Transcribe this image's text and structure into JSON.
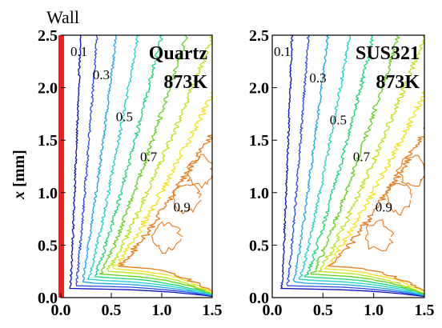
{
  "wall_label": "Wall",
  "y_axis_label": "x [mm]",
  "contour_levels": [
    0.1,
    0.2,
    0.3,
    0.4,
    0.5,
    0.6,
    0.7,
    0.8,
    0.9
  ],
  "contour_colors": [
    "#0a12b8",
    "#2848ee",
    "#1aa6e6",
    "#1ed2cc",
    "#17d67a",
    "#5fd21c",
    "#b8e418",
    "#f2e11c",
    "#ea7a1a"
  ],
  "wall_color": "#ff1a1a",
  "chart_data": [
    {
      "type": "contour",
      "name_label": "Quartz",
      "temp_label": "873K",
      "xlim": [
        0,
        1.5
      ],
      "ylim": [
        0,
        2.5
      ],
      "x_ticks": [
        "0.0",
        "0.5",
        "1.0",
        "1.5"
      ],
      "y_ticks": [
        "0.0",
        "0.5",
        "1.0",
        "1.5",
        "2.0",
        "2.5"
      ],
      "shows_wall": true,
      "contour_labels": [
        {
          "text": "0.1",
          "x": 0.18,
          "y": 2.3
        },
        {
          "text": "0.3",
          "x": 0.4,
          "y": 2.08
        },
        {
          "text": "0.5",
          "x": 0.63,
          "y": 1.68
        },
        {
          "text": "0.7",
          "x": 0.87,
          "y": 1.3
        },
        {
          "text": "0.9",
          "x": 1.2,
          "y": 0.82
        }
      ]
    },
    {
      "type": "contour",
      "name_label": "SUS321",
      "temp_label": "873K",
      "xlim": [
        0,
        1.5
      ],
      "ylim": [
        0,
        2.5
      ],
      "x_ticks": [
        "0.0",
        "0.5",
        "1.0",
        "1.5"
      ],
      "y_ticks": [
        "0.0",
        "0.5",
        "1.0",
        "1.5",
        "2.0",
        "2.5"
      ],
      "shows_wall": false,
      "contour_labels": [
        {
          "text": "0.1",
          "x": 0.1,
          "y": 2.3
        },
        {
          "text": "0.3",
          "x": 0.45,
          "y": 2.05
        },
        {
          "text": "0.5",
          "x": 0.65,
          "y": 1.65
        },
        {
          "text": "0.7",
          "x": 0.88,
          "y": 1.3
        },
        {
          "text": "0.9",
          "x": 1.1,
          "y": 0.82
        }
      ]
    }
  ]
}
